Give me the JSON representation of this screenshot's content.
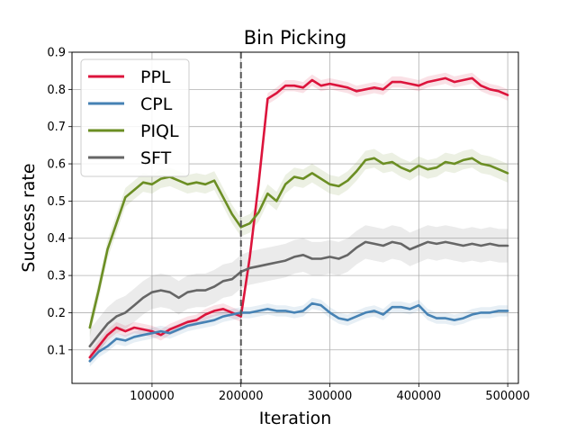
{
  "chart_data": {
    "type": "line",
    "title": "Bin Picking",
    "xlabel": "Iteration",
    "ylabel": "Success rate",
    "xlim": [
      10000,
      512000
    ],
    "ylim": [
      0.01,
      0.9
    ],
    "xticks": [
      100000,
      200000,
      300000,
      400000,
      500000
    ],
    "xtick_labels": [
      "100000",
      "200000",
      "300000",
      "400000",
      "500000"
    ],
    "yticks": [
      0.1,
      0.2,
      0.3,
      0.4,
      0.5,
      0.6,
      0.7,
      0.8,
      0.9
    ],
    "ytick_labels": [
      "0.1",
      "0.2",
      "0.3",
      "0.4",
      "0.5",
      "0.6",
      "0.7",
      "0.8",
      "0.9"
    ],
    "grid": true,
    "legend_position": "top-left",
    "vertical_line": {
      "x": 200000,
      "style": "dashed",
      "color": "#555555"
    },
    "series": [
      {
        "name": "PPL",
        "color": "#dc143c",
        "band": 0.015,
        "x": [
          30000,
          40000,
          50000,
          60000,
          70000,
          80000,
          90000,
          100000,
          110000,
          120000,
          130000,
          140000,
          150000,
          160000,
          170000,
          180000,
          190000,
          200000,
          210000,
          220000,
          230000,
          240000,
          250000,
          260000,
          270000,
          280000,
          290000,
          300000,
          310000,
          320000,
          330000,
          340000,
          350000,
          360000,
          370000,
          380000,
          390000,
          400000,
          410000,
          420000,
          430000,
          440000,
          450000,
          460000,
          470000,
          480000,
          490000,
          500000
        ],
        "y": [
          0.08,
          0.11,
          0.14,
          0.16,
          0.15,
          0.16,
          0.155,
          0.15,
          0.14,
          0.155,
          0.165,
          0.175,
          0.18,
          0.195,
          0.205,
          0.21,
          0.2,
          0.19,
          0.35,
          0.55,
          0.775,
          0.79,
          0.81,
          0.81,
          0.805,
          0.825,
          0.81,
          0.815,
          0.81,
          0.805,
          0.795,
          0.8,
          0.805,
          0.8,
          0.82,
          0.82,
          0.815,
          0.81,
          0.82,
          0.825,
          0.83,
          0.82,
          0.825,
          0.83,
          0.81,
          0.8,
          0.795,
          0.785
        ]
      },
      {
        "name": "CPL",
        "color": "#4682b4",
        "band": 0.015,
        "x": [
          30000,
          40000,
          50000,
          60000,
          70000,
          80000,
          90000,
          100000,
          110000,
          120000,
          130000,
          140000,
          150000,
          160000,
          170000,
          180000,
          190000,
          200000,
          210000,
          220000,
          230000,
          240000,
          250000,
          260000,
          270000,
          280000,
          290000,
          300000,
          310000,
          320000,
          330000,
          340000,
          350000,
          360000,
          370000,
          380000,
          390000,
          400000,
          410000,
          420000,
          430000,
          440000,
          450000,
          460000,
          470000,
          480000,
          490000,
          500000
        ],
        "y": [
          0.07,
          0.095,
          0.11,
          0.13,
          0.125,
          0.135,
          0.14,
          0.145,
          0.15,
          0.145,
          0.155,
          0.165,
          0.17,
          0.175,
          0.18,
          0.19,
          0.195,
          0.2,
          0.2,
          0.205,
          0.21,
          0.205,
          0.205,
          0.2,
          0.205,
          0.225,
          0.22,
          0.2,
          0.185,
          0.18,
          0.19,
          0.2,
          0.205,
          0.195,
          0.215,
          0.215,
          0.21,
          0.22,
          0.195,
          0.185,
          0.185,
          0.18,
          0.185,
          0.195,
          0.2,
          0.2,
          0.205,
          0.205
        ]
      },
      {
        "name": "PIQL",
        "color": "#6b8e23",
        "band": 0.025,
        "x": [
          30000,
          40000,
          50000,
          60000,
          70000,
          80000,
          90000,
          100000,
          110000,
          120000,
          130000,
          140000,
          150000,
          160000,
          170000,
          180000,
          190000,
          200000,
          210000,
          220000,
          230000,
          240000,
          250000,
          260000,
          270000,
          280000,
          290000,
          300000,
          310000,
          320000,
          330000,
          340000,
          350000,
          360000,
          370000,
          380000,
          390000,
          400000,
          410000,
          420000,
          430000,
          440000,
          450000,
          460000,
          470000,
          480000,
          490000,
          500000
        ],
        "y": [
          0.16,
          0.26,
          0.37,
          0.44,
          0.51,
          0.53,
          0.55,
          0.545,
          0.56,
          0.565,
          0.555,
          0.545,
          0.55,
          0.545,
          0.555,
          0.51,
          0.465,
          0.43,
          0.44,
          0.47,
          0.52,
          0.5,
          0.545,
          0.565,
          0.56,
          0.575,
          0.56,
          0.545,
          0.54,
          0.555,
          0.58,
          0.61,
          0.615,
          0.6,
          0.605,
          0.59,
          0.58,
          0.595,
          0.585,
          0.59,
          0.605,
          0.6,
          0.61,
          0.615,
          0.6,
          0.595,
          0.585,
          0.575
        ]
      },
      {
        "name": "SFT",
        "color": "#666666",
        "band": 0.045,
        "x": [
          30000,
          40000,
          50000,
          60000,
          70000,
          80000,
          90000,
          100000,
          110000,
          120000,
          130000,
          140000,
          150000,
          160000,
          170000,
          180000,
          190000,
          200000,
          210000,
          220000,
          230000,
          240000,
          250000,
          260000,
          270000,
          280000,
          290000,
          300000,
          310000,
          320000,
          330000,
          340000,
          350000,
          360000,
          370000,
          380000,
          390000,
          400000,
          410000,
          420000,
          430000,
          440000,
          450000,
          460000,
          470000,
          480000,
          490000,
          500000
        ],
        "y": [
          0.11,
          0.14,
          0.17,
          0.19,
          0.2,
          0.22,
          0.24,
          0.255,
          0.26,
          0.255,
          0.24,
          0.255,
          0.26,
          0.26,
          0.27,
          0.285,
          0.29,
          0.31,
          0.32,
          0.325,
          0.33,
          0.335,
          0.34,
          0.35,
          0.355,
          0.345,
          0.345,
          0.35,
          0.345,
          0.355,
          0.375,
          0.39,
          0.385,
          0.38,
          0.39,
          0.385,
          0.37,
          0.38,
          0.39,
          0.385,
          0.39,
          0.385,
          0.38,
          0.385,
          0.38,
          0.385,
          0.38,
          0.38
        ]
      }
    ]
  }
}
